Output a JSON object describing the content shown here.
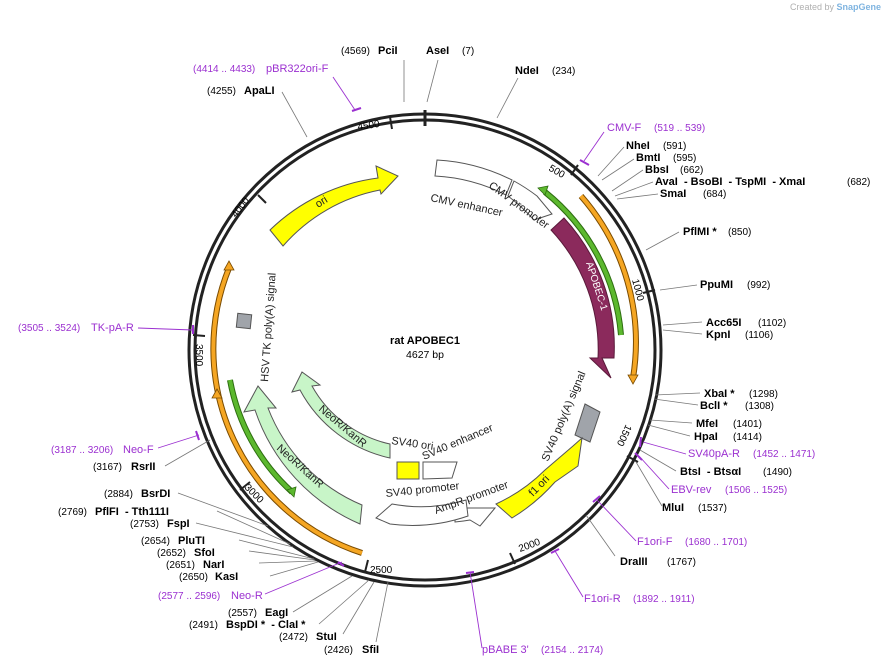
{
  "credit": {
    "prefix": "Created by",
    "brand": "SnapGene"
  },
  "plasmid": {
    "name": "rat APOBEC1",
    "length": "4627 bp"
  },
  "ticks": [
    "500",
    "1000",
    "1500",
    "2000",
    "2500",
    "3000",
    "3500",
    "4000",
    "4500"
  ],
  "features": [
    {
      "id": "cmv-enhancer",
      "label": "CMV enhancer"
    },
    {
      "id": "cmv-promoter",
      "label": "CMV promoter"
    },
    {
      "id": "apobec1",
      "label": "APOBEC-1"
    },
    {
      "id": "sv40-polya",
      "label": "SV40 poly(A) signal"
    },
    {
      "id": "f1-ori",
      "label": "f1 ori"
    },
    {
      "id": "ampr-promoter",
      "label": "AmpR promoter"
    },
    {
      "id": "sv40-promoter",
      "label": "SV40 promoter"
    },
    {
      "id": "sv40-ori",
      "label": "SV40 ori"
    },
    {
      "id": "sv40-enhancer",
      "label": "SV40 enhancer"
    },
    {
      "id": "neokanr-outer",
      "label": "NeoR/KanR"
    },
    {
      "id": "neokanr-inner",
      "label": "NeoR/KanR"
    },
    {
      "id": "hsv-tk-polya",
      "label": "HSV TK poly(A) signal"
    },
    {
      "id": "ori",
      "label": "ori"
    }
  ],
  "sites": [
    {
      "name": "PciI",
      "pos": "(4569)"
    },
    {
      "name": "AseI",
      "pos": "(7)"
    },
    {
      "name": "NdeI",
      "pos": "(234)"
    },
    {
      "name": "NheI",
      "pos": "(591)"
    },
    {
      "name": "BmtI",
      "pos": "(595)"
    },
    {
      "name": "BbsI",
      "pos": "(662)"
    },
    {
      "name": "AvaI  - BsoBI  - TspMI  - XmaI",
      "pos": "(682)"
    },
    {
      "name": "SmaI",
      "pos": "(684)"
    },
    {
      "name": "PflMI *",
      "pos": "(850)"
    },
    {
      "name": "PpuMI",
      "pos": "(992)"
    },
    {
      "name": "Acc65I",
      "pos": "(1102)"
    },
    {
      "name": "KpnI",
      "pos": "(1106)"
    },
    {
      "name": "XbaI *",
      "pos": "(1298)"
    },
    {
      "name": "BclI *",
      "pos": "(1308)"
    },
    {
      "name": "MfeI",
      "pos": "(1401)"
    },
    {
      "name": "HpaI",
      "pos": "(1414)"
    },
    {
      "name": "BtsI  - BtsαI",
      "pos": "(1490)"
    },
    {
      "name": "MluI",
      "pos": "(1537)"
    },
    {
      "name": "DraIII",
      "pos": "(1767)"
    },
    {
      "name": "SfiI",
      "pos": "(2426)"
    },
    {
      "name": "StuI",
      "pos": "(2472)"
    },
    {
      "name": "BspDI *  - ClaI *",
      "pos": "(2491)"
    },
    {
      "name": "EagI",
      "pos": "(2557)"
    },
    {
      "name": "KasI",
      "pos": "(2650)"
    },
    {
      "name": "NarI",
      "pos": "(2651)"
    },
    {
      "name": "SfoI",
      "pos": "(2652)"
    },
    {
      "name": "PluTI",
      "pos": "(2654)"
    },
    {
      "name": "FspI",
      "pos": "(2753)"
    },
    {
      "name": "PflFI  - Tth111I",
      "pos": "(2769)"
    },
    {
      "name": "BsrDI",
      "pos": "(2884)"
    },
    {
      "name": "RsrII",
      "pos": "(3167)"
    },
    {
      "name": "ApaLI",
      "pos": "(4255)"
    }
  ],
  "primers": [
    {
      "name": "pBR322ori-F",
      "pos": "(4414 .. 4433)"
    },
    {
      "name": "CMV-F",
      "pos": "(519 .. 539)"
    },
    {
      "name": "SV40pA-R",
      "pos": "(1452 .. 1471)"
    },
    {
      "name": "EBV-rev",
      "pos": "(1506 .. 1525)"
    },
    {
      "name": "F1ori-F",
      "pos": "(1680 .. 1701)"
    },
    {
      "name": "F1ori-R",
      "pos": "(1892 .. 1911)"
    },
    {
      "name": "pBABE 3'",
      "pos": "(2154 .. 2174)"
    },
    {
      "name": "Neo-R",
      "pos": "(2577 .. 2596)"
    },
    {
      "name": "Neo-F",
      "pos": "(3187 .. 3206)"
    },
    {
      "name": "TK-pA-R",
      "pos": "(3505 .. 3524)"
    }
  ],
  "colors": {
    "backbone": "#222222",
    "apobec": "#8b2a5c",
    "ori": "#ffff00",
    "neokanr": "#c8f5c8",
    "polya": "#a0a4aa",
    "promoter": "#ffffff",
    "primer": "#9b30d0",
    "orange_band": "#f5a623",
    "green_band": "#5cb82e"
  }
}
